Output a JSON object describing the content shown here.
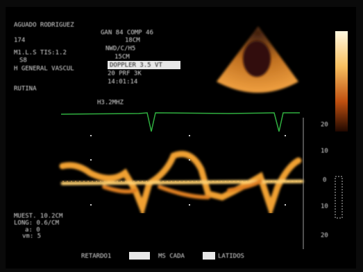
{
  "patient": {
    "name": "AGUADO RODRIGUEZ",
    "id": "174",
    "settings": "M1.L.S TIS:1.2",
    "sub": "S8",
    "exam": "H GENERAL VASCUL",
    "preset": "RUTINA"
  },
  "acquisition": {
    "gain": "GAN 84 COMP 46",
    "depth": "18CM",
    "mode": "NWD/C/H5",
    "focus": "15CM",
    "highlight": "DOPPLER 3.5 VT",
    "prf": "20 PRF 3K",
    "time": "14:01:14",
    "freq": "H3.2MHZ"
  },
  "scale": {
    "labels": [
      "20",
      "10",
      "0",
      "10",
      "20"
    ]
  },
  "sample": {
    "volume": "MUEST. 10.2CM",
    "length": "LONG: 0.6/CM",
    "angle": "a: 0",
    "vm": "vm: 5"
  },
  "footer": {
    "delay": "RETARDO1",
    "each": "MS CADA",
    "beats": "LATIDOS"
  }
}
